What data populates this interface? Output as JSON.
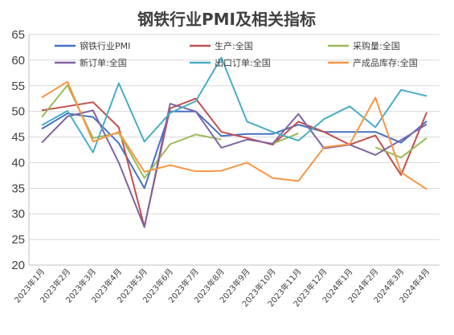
{
  "chart_data": {
    "type": "line",
    "title": "钢铁行业PMI及相关指标",
    "xlabel": "",
    "ylabel": "",
    "ylim": [
      20,
      65
    ],
    "yticks": [
      20,
      25,
      30,
      35,
      40,
      45,
      50,
      55,
      60,
      65
    ],
    "grid": true,
    "legend_position": "top",
    "categories": [
      "2023年1月",
      "2023年2月",
      "2023年3月",
      "2023年4月",
      "2023年5月",
      "2023年6月",
      "2023年7月",
      "2023年8月",
      "2023年9月",
      "2023年10月",
      "2023年11月",
      "2023年12月",
      "2024年1月",
      "2024年2月",
      "2024年3月",
      "2024年4月"
    ],
    "series": [
      {
        "name": "钢铁行业PMI",
        "color": "#4472c4",
        "values": [
          46.6,
          49.6,
          48.9,
          43.8,
          35.0,
          50.0,
          50.0,
          45.2,
          45.6,
          45.6,
          47.4,
          46.0,
          46.0,
          46.0,
          43.9,
          48.1
        ]
      },
      {
        "name": "生产:全国",
        "color": "#c0504d",
        "values": [
          50.2,
          51.0,
          51.8,
          46.9,
          27.5,
          50.6,
          52.5,
          46.0,
          44.8,
          43.5,
          48.0,
          46.0,
          43.5,
          45.3,
          37.6,
          49.8
        ]
      },
      {
        "name": "采购量:全国",
        "color": "#9bbb59",
        "values": [
          48.9,
          55.1,
          44.8,
          45.8,
          37.0,
          43.6,
          45.5,
          44.5,
          null,
          43.7,
          45.7,
          null,
          null,
          43.0,
          41.0,
          44.8
        ]
      },
      {
        "name": "新订单:全国",
        "color": "#8064a2",
        "values": [
          43.9,
          49.0,
          50.2,
          40.0,
          27.4,
          51.5,
          50.0,
          42.9,
          44.5,
          43.7,
          49.5,
          42.8,
          43.5,
          41.5,
          44.4,
          47.5
        ]
      },
      {
        "name": "出口订单:全国",
        "color": "#4bacc6",
        "values": [
          47.3,
          50.1,
          42.0,
          55.5,
          44.1,
          49.7,
          52.0,
          60.5,
          48.0,
          46.0,
          44.3,
          48.5,
          51.0,
          46.9,
          54.2,
          53.0
        ]
      },
      {
        "name": "产成品库存:全国",
        "color": "#f79646",
        "values": [
          52.7,
          55.8,
          44.1,
          46.0,
          38.2,
          39.5,
          38.3,
          38.4,
          40.0,
          37.0,
          36.4,
          43.0,
          43.6,
          52.7,
          38.1,
          34.8
        ]
      }
    ]
  }
}
